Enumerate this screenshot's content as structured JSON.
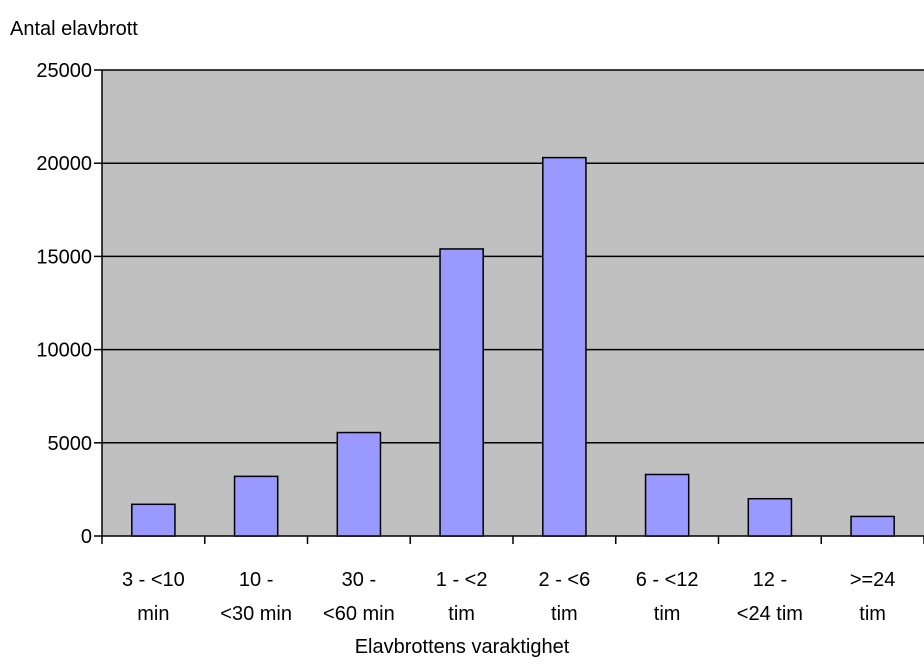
{
  "chart_data": {
    "type": "bar",
    "title": "",
    "ylabel": "Antal elavbrott",
    "xlabel": "Elavbrottens varaktighet",
    "categories": [
      [
        "3 - <10",
        "min"
      ],
      [
        "10 -",
        "<30 min"
      ],
      [
        "30 -",
        "<60 min"
      ],
      [
        "1 - <2",
        "tim"
      ],
      [
        "2 - <6",
        "tim"
      ],
      [
        "6 - <12",
        "tim"
      ],
      [
        "12 -",
        "<24 tim"
      ],
      [
        ">=24",
        "tim"
      ]
    ],
    "values": [
      1700,
      3200,
      5550,
      15400,
      20300,
      3300,
      2000,
      1050
    ],
    "ylim": [
      0,
      25000
    ],
    "yticks": [
      0,
      5000,
      10000,
      15000,
      20000,
      25000
    ],
    "grid": true,
    "legend": "none",
    "colors": {
      "plot_bg": "#c0c0c0",
      "bar_fill": "#9999ff",
      "bar_stroke": "#000000"
    }
  }
}
